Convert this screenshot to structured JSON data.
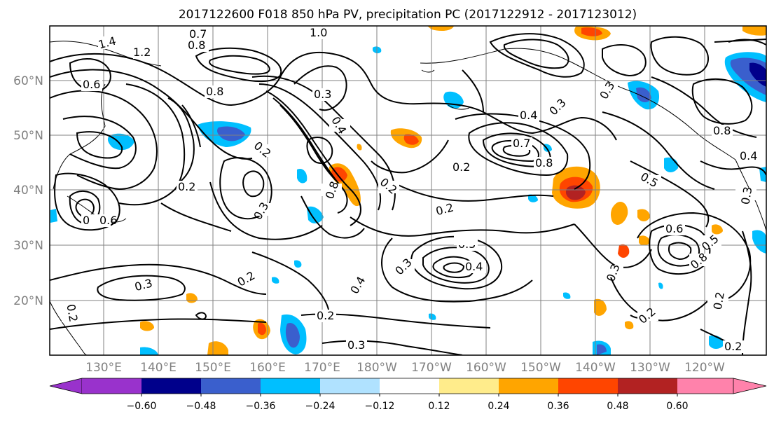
{
  "title": "2017122600 F018 850 hPa PV, precipitation PC (2017122912 - 2017123012)",
  "lat_labels": [
    "60°N",
    "50°N",
    "40°N",
    "30°N",
    "20°N"
  ],
  "lon_labels": [
    "130°E",
    "140°E",
    "150°E",
    "160°E",
    "170°E",
    "180°W",
    "170°W",
    "160°W",
    "150°W",
    "140°W",
    "130°W",
    "120°W"
  ],
  "colorbar": {
    "ticks": [
      "−0.60",
      "−0.48",
      "−0.36",
      "−0.24",
      "−0.12",
      "0.12",
      "0.24",
      "0.36",
      "0.48",
      "0.60"
    ],
    "colors": [
      "#9932cc",
      "#00008b",
      "#3a5fcd",
      "#00bfff",
      "#b0e2ff",
      "#ffffff",
      "#ffec8b",
      "#ffa500",
      "#ff4500",
      "#b22222",
      "#ff82ab"
    ]
  },
  "contour_labels": [
    "0.7",
    "1.0",
    "0.8",
    "1.4",
    "1.2",
    "0.6",
    "0.8",
    "0.3",
    "0.4",
    "0.2",
    "0.2",
    "0.2",
    "0.3",
    "0.8",
    "0.6",
    "0.2",
    "0.7",
    "0.8",
    "0.4",
    "0.3",
    "0.2",
    "0.5",
    "0.3",
    "0.5",
    "0.4",
    "0.3",
    "0.2",
    "0.4",
    "0.3",
    "0.2",
    "0.3",
    "0.6",
    "0.5",
    "0.8",
    "0.3",
    "0.2",
    "0.2",
    "0.2",
    "0.8",
    "0.4",
    "0.3",
    "0.5",
    "0.2",
    "0.6"
  ],
  "colors": {
    "grid": "#808080",
    "contour": "#000000",
    "text_muted": "#808080"
  }
}
